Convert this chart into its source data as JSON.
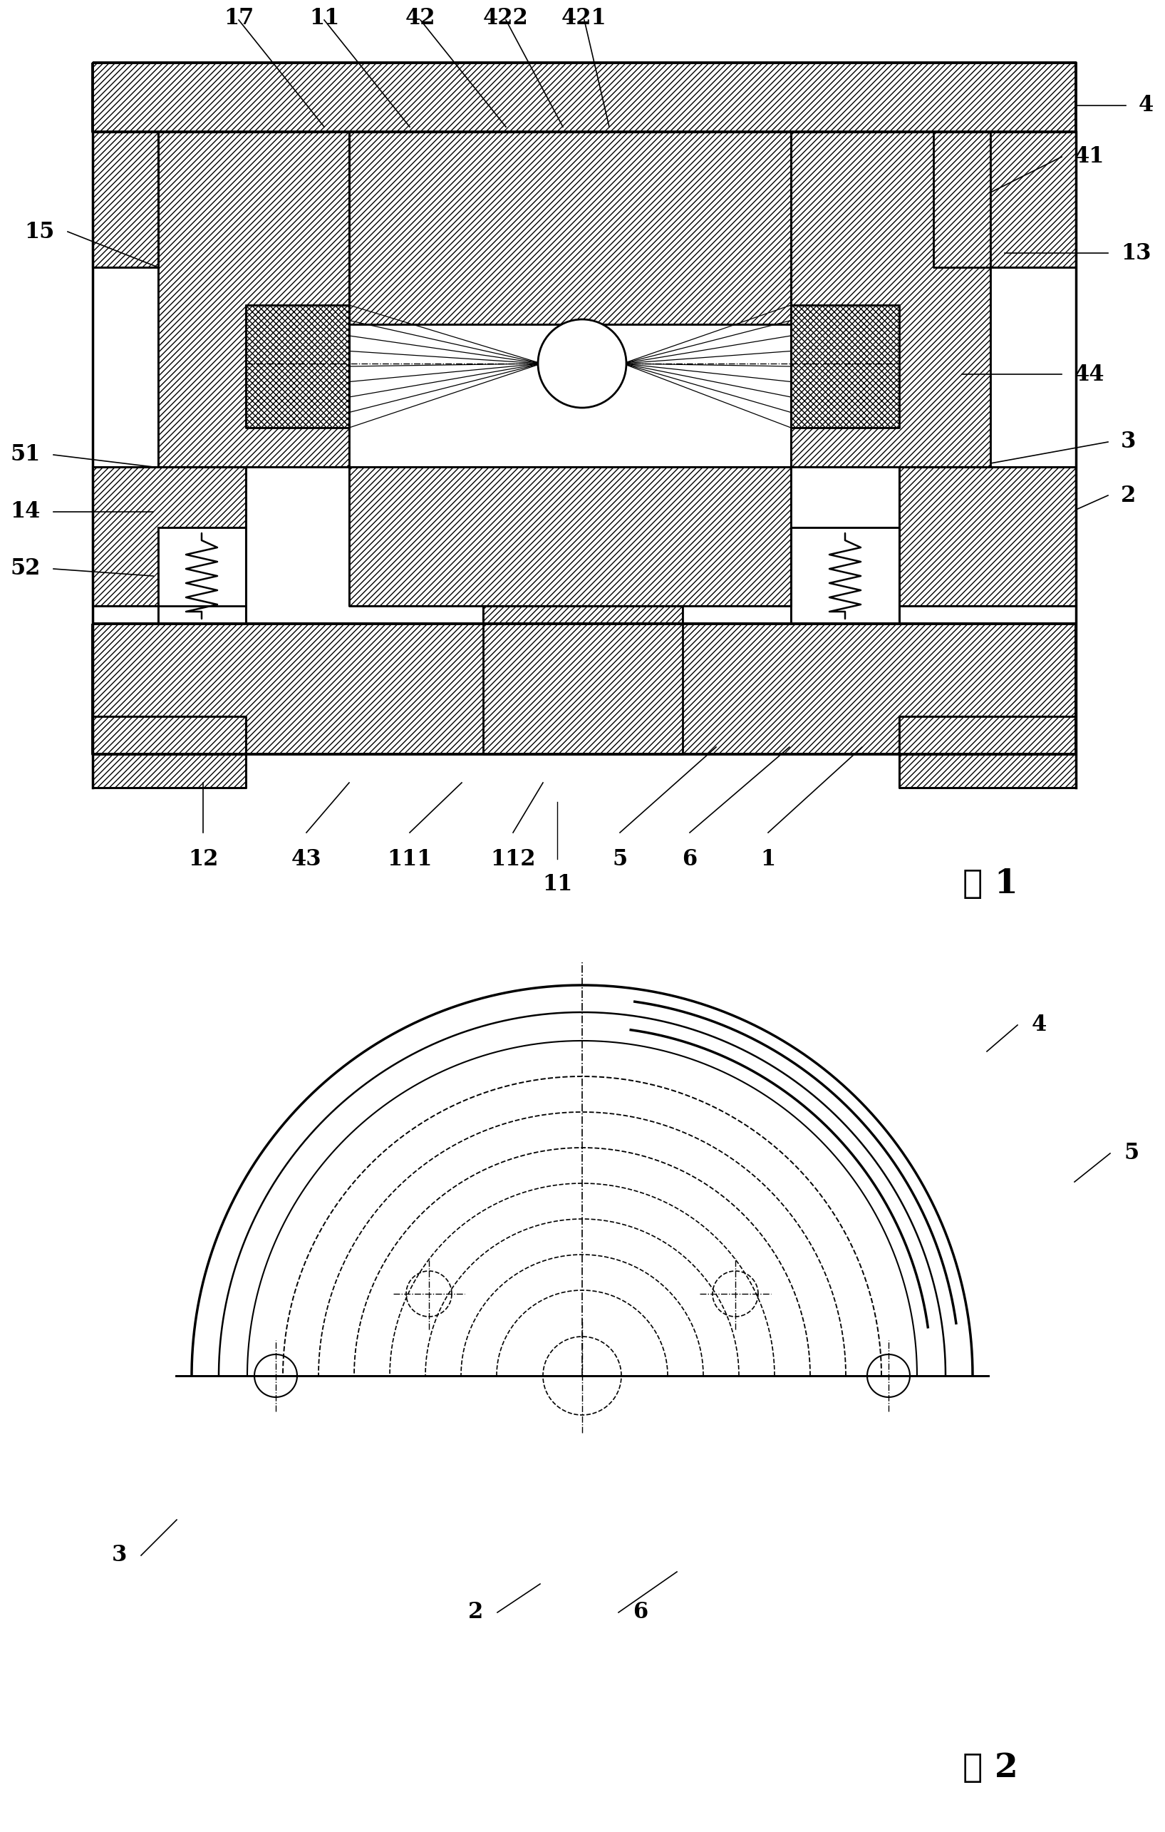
{
  "fig_width": 16.35,
  "fig_height": 25.7,
  "bg_color": "#ffffff",
  "line_color": "#000000",
  "fig1_label": "图 1",
  "fig2_label": "图 2",
  "top_labels": [
    [
      "17",
      335,
      28,
      455,
      178
    ],
    [
      "11",
      455,
      28,
      575,
      178
    ],
    [
      "42",
      590,
      28,
      710,
      178
    ],
    [
      "422",
      710,
      28,
      790,
      178
    ],
    [
      "421",
      820,
      28,
      855,
      178
    ]
  ],
  "right_labels": [
    [
      "4",
      1580,
      148,
      1510,
      148
    ],
    [
      "41",
      1490,
      220,
      1390,
      270
    ],
    [
      "13",
      1555,
      355,
      1410,
      355
    ],
    [
      "44",
      1490,
      525,
      1350,
      525
    ],
    [
      "3",
      1555,
      620,
      1390,
      650
    ],
    [
      "2",
      1555,
      695,
      1510,
      715
    ]
  ],
  "left_labels": [
    [
      "15",
      95,
      325,
      222,
      375
    ],
    [
      "51",
      75,
      638,
      215,
      655
    ],
    [
      "14",
      75,
      718,
      215,
      718
    ],
    [
      "52",
      75,
      798,
      215,
      808
    ]
  ],
  "bottom_labels": [
    [
      "12",
      285,
      1168,
      285,
      1098
    ],
    [
      "43",
      430,
      1168,
      490,
      1098
    ],
    [
      "111",
      575,
      1168,
      648,
      1098
    ],
    [
      "112",
      720,
      1168,
      762,
      1098
    ],
    [
      "5",
      870,
      1168,
      1005,
      1048
    ],
    [
      "6",
      968,
      1168,
      1108,
      1048
    ],
    [
      "1",
      1078,
      1168,
      1210,
      1048
    ]
  ],
  "fig2_labels": [
    [
      "4",
      1428,
      1438,
      1385,
      1475
    ],
    [
      "5",
      1558,
      1618,
      1508,
      1658
    ],
    [
      "3",
      198,
      2182,
      248,
      2132
    ],
    [
      "2",
      698,
      2262,
      758,
      2222
    ],
    [
      "6",
      868,
      2262,
      950,
      2205
    ]
  ]
}
